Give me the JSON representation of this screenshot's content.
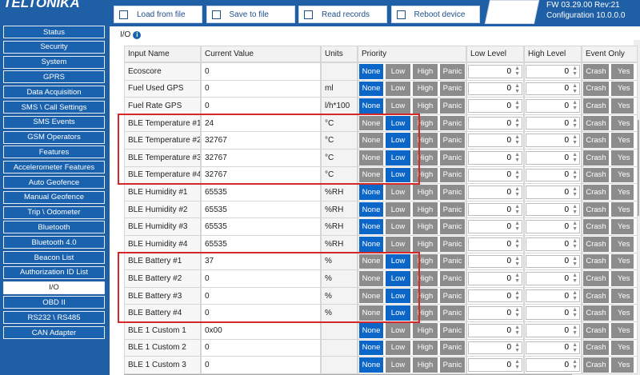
{
  "header": {
    "logo": "TELTONIKA",
    "buttons": [
      "Load from file",
      "Save to file",
      "Read records",
      "Reboot device"
    ],
    "fw": "FW 03.29.00 Rev:21",
    "config": "Configuration 10.0.0.0"
  },
  "sidebar": {
    "items": [
      "Status",
      "Security",
      "System",
      "GPRS",
      "Data Acquisition",
      "SMS \\ Call Settings",
      "SMS Events",
      "GSM Operators",
      "Features",
      "Accelerometer Features",
      "Auto Geofence",
      "Manual Geofence",
      "Trip \\ Odometer",
      "Bluetooth",
      "Bluetooth 4.0",
      "Beacon List",
      "Authorization ID List",
      "I/O",
      "OBD II",
      "RS232 \\ RS485",
      "CAN Adapter"
    ],
    "selected": "I/O"
  },
  "section": {
    "title": "I/O"
  },
  "table": {
    "columns": [
      "Input Name",
      "Current Value",
      "Units",
      "Priority",
      "Low Level",
      "High Level",
      "Event Only"
    ],
    "priority_options": [
      "None",
      "Low",
      "High",
      "Panic"
    ],
    "event_options": [
      "Crash",
      "Yes"
    ],
    "rows": [
      {
        "name": "Ecoscore",
        "value": "0",
        "units": "",
        "priority": "None",
        "low": 0,
        "high": 0
      },
      {
        "name": "Fuel Used GPS",
        "value": "0",
        "units": "ml",
        "priority": "None",
        "low": 0,
        "high": 0
      },
      {
        "name": "Fuel Rate GPS",
        "value": "0",
        "units": "l/h*100",
        "priority": "None",
        "low": 0,
        "high": 0
      },
      {
        "name": "BLE Temperature #1",
        "value": "24",
        "units": "°C",
        "priority": "Low",
        "low": 0,
        "high": 0
      },
      {
        "name": "BLE Temperature #2",
        "value": "32767",
        "units": "°C",
        "priority": "Low",
        "low": 0,
        "high": 0
      },
      {
        "name": "BLE Temperature #3",
        "value": "32767",
        "units": "°C",
        "priority": "Low",
        "low": 0,
        "high": 0
      },
      {
        "name": "BLE Temperature #4",
        "value": "32767",
        "units": "°C",
        "priority": "Low",
        "low": 0,
        "high": 0
      },
      {
        "name": "BLE Humidity #1",
        "value": "65535",
        "units": "%RH",
        "priority": "None",
        "low": 0,
        "high": 0
      },
      {
        "name": "BLE Humidity #2",
        "value": "65535",
        "units": "%RH",
        "priority": "None",
        "low": 0,
        "high": 0
      },
      {
        "name": "BLE Humidity #3",
        "value": "65535",
        "units": "%RH",
        "priority": "None",
        "low": 0,
        "high": 0
      },
      {
        "name": "BLE Humidity #4",
        "value": "65535",
        "units": "%RH",
        "priority": "None",
        "low": 0,
        "high": 0
      },
      {
        "name": "BLE Battery #1",
        "value": "37",
        "units": "%",
        "priority": "Low",
        "low": 0,
        "high": 0
      },
      {
        "name": "BLE Battery #2",
        "value": "0",
        "units": "%",
        "priority": "Low",
        "low": 0,
        "high": 0
      },
      {
        "name": "BLE Battery #3",
        "value": "0",
        "units": "%",
        "priority": "Low",
        "low": 0,
        "high": 0
      },
      {
        "name": "BLE Battery #4",
        "value": "0",
        "units": "%",
        "priority": "Low",
        "low": 0,
        "high": 0
      },
      {
        "name": "BLE 1 Custom 1",
        "value": "0x00",
        "units": "",
        "priority": "None",
        "low": 0,
        "high": 0
      },
      {
        "name": "BLE 1 Custom 2",
        "value": "0",
        "units": "",
        "priority": "None",
        "low": 0,
        "high": 0
      },
      {
        "name": "BLE 1 Custom 3",
        "value": "0",
        "units": "",
        "priority": "None",
        "low": 0,
        "high": 0
      }
    ]
  }
}
